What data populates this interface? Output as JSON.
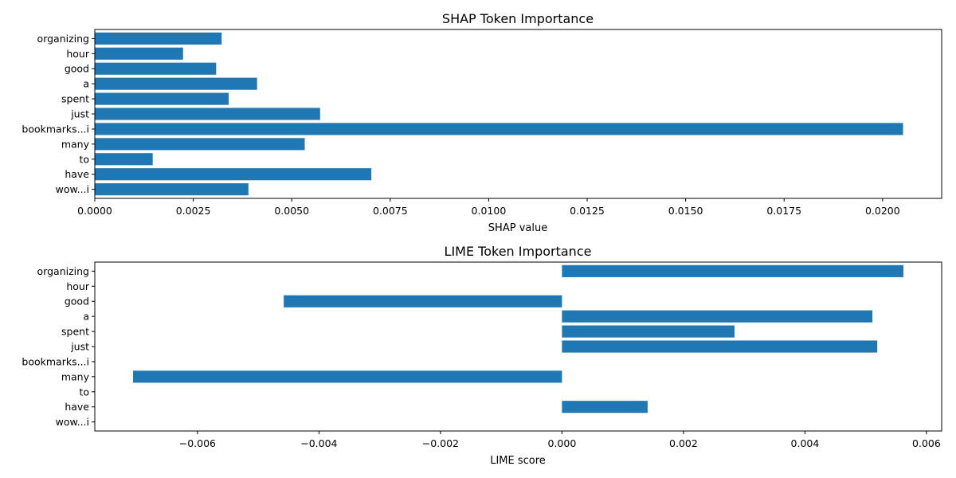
{
  "chart_data": [
    {
      "type": "bar",
      "orientation": "horizontal",
      "title": "SHAP Token Importance",
      "xlabel": "SHAP value",
      "ylabel": "",
      "categories": [
        "organizing",
        "hour",
        "good",
        "a",
        "spent",
        "just",
        "bookmarks...i",
        "many",
        "to",
        "have",
        "wow...i"
      ],
      "values": [
        0.00322,
        0.00224,
        0.00308,
        0.00412,
        0.0034,
        0.00572,
        0.02052,
        0.00533,
        0.00147,
        0.00702,
        0.0039
      ],
      "xlim": [
        0,
        0.0215
      ],
      "xticks": [
        0,
        0.0025,
        0.005,
        0.0075,
        0.01,
        0.0125,
        0.015,
        0.0175,
        0.02
      ],
      "xtick_labels": [
        "0.0000",
        "0.0025",
        "0.0050",
        "0.0075",
        "0.0100",
        "0.0125",
        "0.0150",
        "0.0175",
        "0.0200"
      ],
      "grid": false,
      "color": "#1f77b4"
    },
    {
      "type": "bar",
      "orientation": "horizontal",
      "title": "LIME Token Importance",
      "xlabel": "LIME score",
      "ylabel": "",
      "categories": [
        "organizing",
        "hour",
        "good",
        "a",
        "spent",
        "just",
        "bookmarks...i",
        "many",
        "to",
        "have",
        "wow...i"
      ],
      "values": [
        0.00562,
        0,
        -0.00458,
        0.00511,
        0.00284,
        0.00519,
        0,
        -0.00706,
        0,
        0.00141,
        0
      ],
      "xlim": [
        -0.00769,
        0.00625
      ],
      "xticks": [
        -0.006,
        -0.004,
        -0.002,
        0,
        0.002,
        0.004,
        0.006
      ],
      "xtick_labels": [
        "−0.006",
        "−0.004",
        "−0.002",
        "0.000",
        "0.002",
        "0.004",
        "0.006"
      ],
      "grid": false,
      "color": "#1f77b4"
    }
  ]
}
